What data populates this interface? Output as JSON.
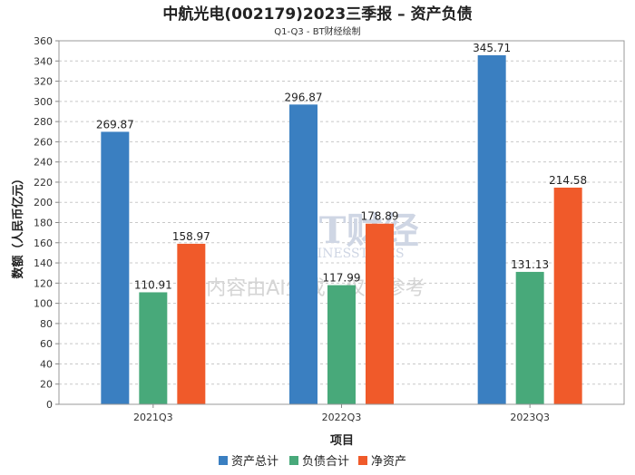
{
  "chart_data": {
    "type": "bar",
    "title": "中航光电(002179)2023三季报 – 资产负债",
    "subtitle": "Q1-Q3 - BT财经绘制",
    "xlabel": "项目",
    "ylabel": "数额（人民币亿元）",
    "ylim": [
      0,
      360
    ],
    "ytick_step": 20,
    "grid": true,
    "legend_position": "bottom",
    "categories": [
      "2021Q3",
      "2022Q3",
      "2023Q3"
    ],
    "series": [
      {
        "name": "资产总计",
        "color": "#3a7fc1",
        "values": [
          269.87,
          296.87,
          345.71
        ]
      },
      {
        "name": "负债合计",
        "color": "#48a97a",
        "values": [
          110.91,
          117.99,
          131.13
        ]
      },
      {
        "name": "净资产",
        "color": "#f05a2a",
        "values": [
          158.97,
          178.89,
          214.58
        ]
      }
    ]
  },
  "watermark": {
    "brand": "BT财经",
    "brand_en": "BUSINESSTIMES",
    "notice": "内容由AI生成，仅供参考"
  }
}
